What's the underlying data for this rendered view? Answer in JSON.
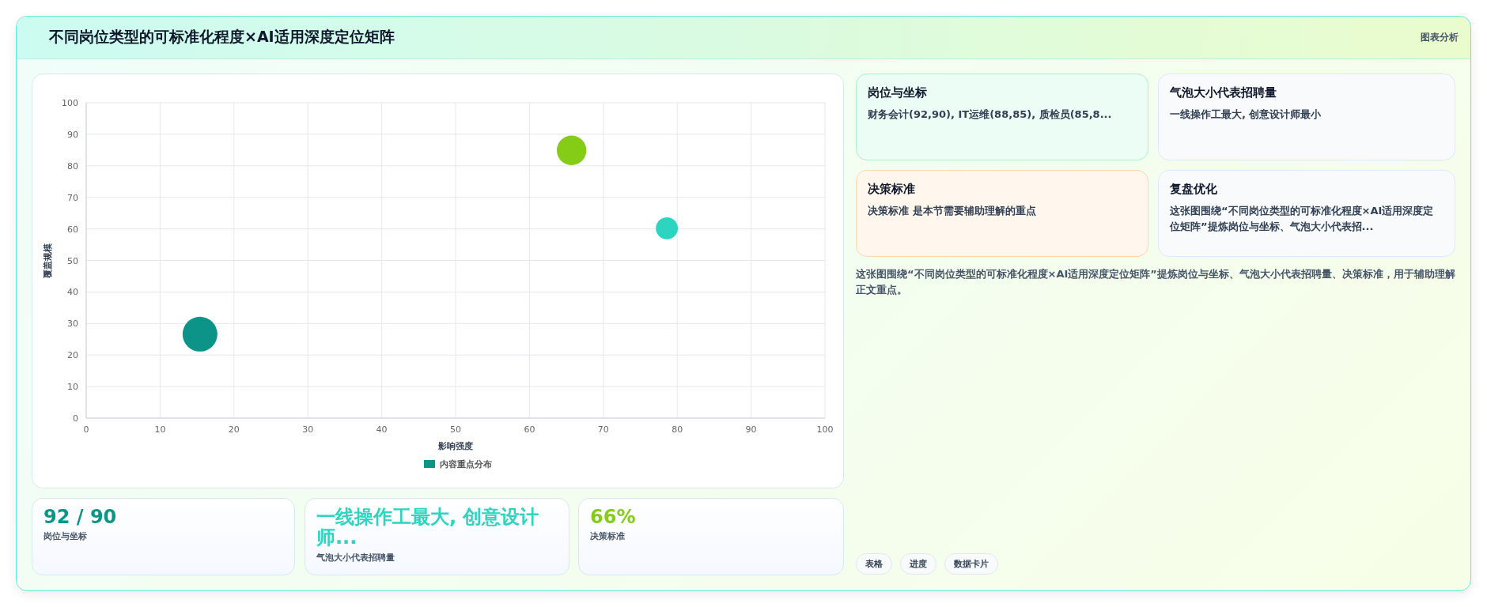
{
  "chart_data": [
    {
      "type": "bubble",
      "title": "不同岗位类型的可标准化程度×AI适用深度定位矩阵",
      "xlabel": "影响强度",
      "ylabel": "覆盖规模",
      "x": [
        15.4,
        65.7,
        78.6
      ],
      "series": [
        {
          "name": "内容重点分布",
          "color": "#0d9488",
          "colors": [
            "#0d9488",
            "#84cc16",
            "#2dd4bf"
          ],
          "values": [
            26.6,
            84.9,
            60.2
          ],
          "sizes": [
            1,
            0.72,
            0.4
          ]
        }
      ],
      "xlim": [
        0,
        100
      ],
      "ylim": [
        0,
        100
      ],
      "xticks": [
        0,
        10,
        20,
        30,
        40,
        50,
        60,
        70,
        80,
        90,
        100
      ],
      "yticks": [
        0,
        10,
        20,
        30,
        40,
        50,
        60,
        70,
        80,
        90,
        100
      ],
      "grid": true,
      "legend": "bottom",
      "annotations": [
        "图表分析"
      ]
    },
    {
      "type": "other",
      "annotations": [
        "岗位与坐标",
        "财务会计(92,90), IT运维(88,85), 质检员(85,8...",
        "气泡大小代表招聘量",
        "一线操作工最大, 创意设计师最小",
        "决策标准",
        "决策标准 是本节需要辅助理解的重点",
        "复盘优化",
        "这张图围绕“不同岗位类型的可标准化程度×AI适用深度定位矩阵”提炼岗位与坐标、气泡大小代表招...",
        "这张图围绕“不同岗位类型的可标准化程度×AI适用深度定位矩阵”提炼岗位与坐标、气泡大小代表招聘量、决策标准，用于辅助理解正文重点。",
        "92 / 90",
        "岗位与坐标",
        "一线操作工最大, 创意设计师...",
        "气泡大小代表招聘量",
        "66%",
        "决策标准",
        "表格",
        "进度",
        "数据卡片"
      ]
    }
  ]
}
